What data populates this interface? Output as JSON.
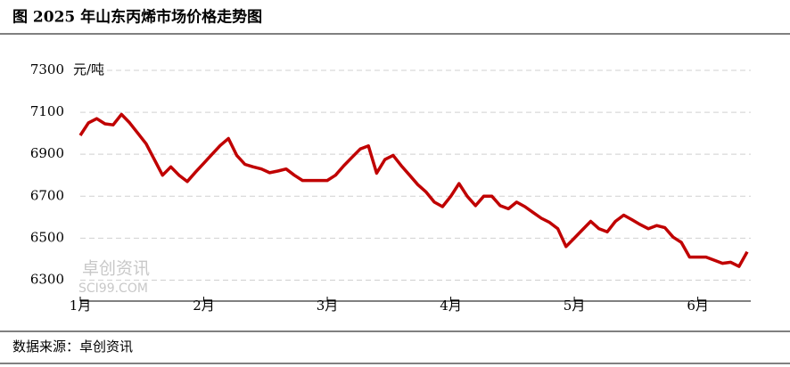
{
  "chart_data": {
    "type": "line",
    "title": "图 2025 年山东丙烯市场价格走势图",
    "y_unit": "元/吨",
    "source": "数据来源：卓创资讯",
    "watermark": [
      "卓创资讯",
      "SCI99.COM"
    ],
    "categories": [
      "1月",
      null,
      null,
      null,
      null,
      null,
      null,
      null,
      null,
      null,
      null,
      null,
      null,
      null,
      null,
      "2月",
      null,
      null,
      null,
      null,
      null,
      null,
      null,
      null,
      null,
      null,
      null,
      null,
      null,
      null,
      "3月",
      null,
      null,
      null,
      null,
      null,
      null,
      null,
      null,
      null,
      null,
      null,
      null,
      null,
      null,
      "4月",
      null,
      null,
      null,
      null,
      null,
      null,
      null,
      null,
      null,
      null,
      null,
      null,
      null,
      null,
      "5月",
      null,
      null,
      null,
      null,
      null,
      null,
      null,
      null,
      null,
      null,
      null,
      null,
      null,
      null,
      "6月",
      null,
      null,
      null,
      null,
      null,
      null
    ],
    "series": [
      {
        "name": "山东丙烯",
        "color": "#c00000",
        "values": [
          6990,
          7050,
          7070,
          7045,
          7040,
          7090,
          7050,
          7000,
          6950,
          6875,
          6800,
          6840,
          6800,
          6770,
          6815,
          6857,
          6900,
          6942,
          6975,
          6895,
          6852,
          6840,
          6830,
          6812,
          6820,
          6830,
          6800,
          6775,
          6775,
          6775,
          6775,
          6800,
          6845,
          6885,
          6925,
          6940,
          6810,
          6875,
          6895,
          6845,
          6800,
          6755,
          6720,
          6672,
          6650,
          6700,
          6760,
          6700,
          6655,
          6700,
          6700,
          6655,
          6640,
          6672,
          6650,
          6622,
          6595,
          6575,
          6545,
          6460,
          6500,
          6540,
          6580,
          6545,
          6530,
          6580,
          6610,
          6588,
          6565,
          6545,
          6560,
          6550,
          6505,
          6480,
          6410,
          6410,
          6410,
          6395,
          6380,
          6385,
          6365,
          6435
        ]
      }
    ],
    "ylim": [
      6200,
      7300
    ],
    "yticks": [
      6300,
      6500,
      6700,
      6900,
      7100,
      7300
    ],
    "grid": true
  }
}
